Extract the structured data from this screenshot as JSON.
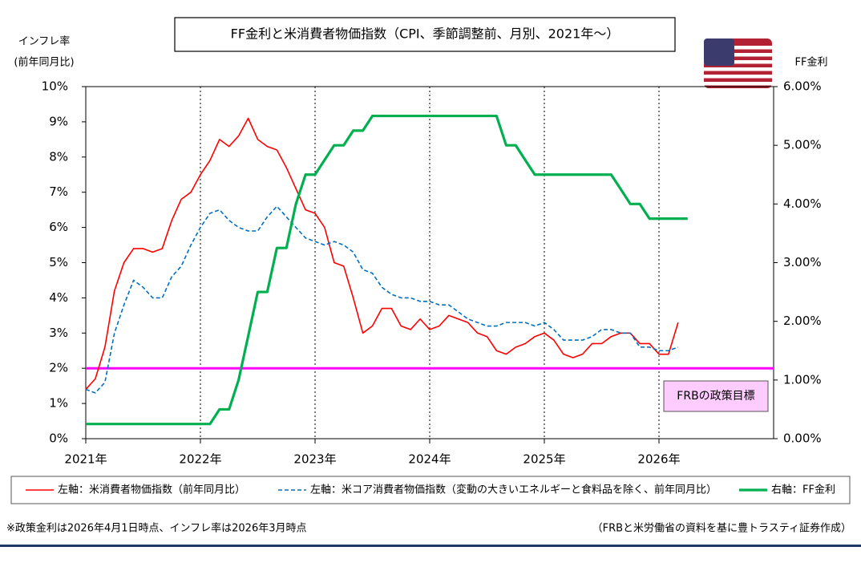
{
  "chart_data": {
    "type": "line",
    "title": "FF金利と米消費者物価指数（CPI、季節調整前、月別、2021年～）",
    "y_label": [
      "インフレ率",
      "(前年同月比)"
    ],
    "y2_label": "FF金利",
    "x": [
      2021,
      2021.083,
      2021.167,
      2021.25,
      2021.333,
      2021.417,
      2021.5,
      2021.583,
      2021.667,
      2021.75,
      2021.833,
      2021.917,
      2022,
      2022.083,
      2022.167,
      2022.25,
      2022.333,
      2022.417,
      2022.5,
      2022.583,
      2022.667,
      2022.75,
      2022.833,
      2022.917,
      2023,
      2023.083,
      2023.167,
      2023.25,
      2023.333,
      2023.417,
      2023.5,
      2023.583,
      2023.667,
      2023.75,
      2023.833,
      2023.917,
      2024,
      2024.083,
      2024.167,
      2024.25,
      2024.333,
      2024.417,
      2024.5,
      2024.583,
      2024.667,
      2024.75,
      2024.833,
      2024.917,
      2025,
      2025.083,
      2025.167,
      2025.25,
      2025.333,
      2025.417,
      2025.5,
      2025.583,
      2025.667,
      2025.75,
      2025.833,
      2025.917,
      2026,
      2026.083,
      2026.167,
      2026.25
    ],
    "xlim": [
      2021,
      2027
    ],
    "xticks": [
      {
        "value": 2021,
        "label": "2021年"
      },
      {
        "value": 2022,
        "label": "2022年"
      },
      {
        "value": 2023,
        "label": "2023年"
      },
      {
        "value": 2024,
        "label": "2024年"
      },
      {
        "value": 2025,
        "label": "2025年"
      },
      {
        "value": 2026,
        "label": "2026年"
      }
    ],
    "ylim": [
      0,
      10
    ],
    "yticks": [
      {
        "value": 0,
        "label": "0%"
      },
      {
        "value": 1,
        "label": "1%"
      },
      {
        "value": 2,
        "label": "2%"
      },
      {
        "value": 3,
        "label": "3%"
      },
      {
        "value": 4,
        "label": "4%"
      },
      {
        "value": 5,
        "label": "5%"
      },
      {
        "value": 6,
        "label": "6%"
      },
      {
        "value": 7,
        "label": "7%"
      },
      {
        "value": 8,
        "label": "8%"
      },
      {
        "value": 9,
        "label": "9%"
      },
      {
        "value": 10,
        "label": "10%"
      }
    ],
    "y2lim": [
      0,
      6
    ],
    "y2ticks": [
      {
        "value": 0,
        "label": "0.00%"
      },
      {
        "value": 1,
        "label": "1.00%"
      },
      {
        "value": 2,
        "label": "2.00%"
      },
      {
        "value": 3,
        "label": "3.00%"
      },
      {
        "value": 4,
        "label": "4.00%"
      },
      {
        "value": 5,
        "label": "5.00%"
      },
      {
        "value": 6,
        "label": "6.00%"
      }
    ],
    "grid": "x",
    "series": [
      {
        "name": "左軸：米消費者物価指数（前年同月比）",
        "color": "#ff0000",
        "style": "solid",
        "values": [
          1.4,
          1.7,
          2.6,
          4.2,
          5.0,
          5.4,
          5.4,
          5.3,
          5.4,
          6.2,
          6.8,
          7.0,
          7.5,
          7.9,
          8.5,
          8.3,
          8.6,
          9.1,
          8.5,
          8.3,
          8.2,
          7.7,
          7.1,
          6.5,
          6.4,
          6.0,
          5.0,
          4.9,
          4.0,
          3.0,
          3.2,
          3.7,
          3.7,
          3.2,
          3.1,
          3.4,
          3.1,
          3.2,
          3.5,
          3.4,
          3.3,
          3.0,
          2.9,
          2.5,
          2.4,
          2.6,
          2.7,
          2.9,
          3.0,
          2.8,
          2.4,
          2.3,
          2.4,
          2.7,
          2.7,
          2.9,
          3.0,
          3.0,
          2.7,
          2.7,
          2.4,
          2.4,
          3.3,
          null
        ]
      },
      {
        "name": "左軸：米コア消費者物価指数（変動の大きいエネルギーと食料品を除く、前年同月比）",
        "color": "#0070c0",
        "style": "dashed",
        "values": [
          1.4,
          1.3,
          1.6,
          3.0,
          3.8,
          4.5,
          4.3,
          4.0,
          4.0,
          4.6,
          4.9,
          5.5,
          6.0,
          6.4,
          6.5,
          6.2,
          6.0,
          5.9,
          5.9,
          6.3,
          6.6,
          6.3,
          6.0,
          5.7,
          5.6,
          5.5,
          5.6,
          5.5,
          5.3,
          4.8,
          4.7,
          4.3,
          4.1,
          4.0,
          4.0,
          3.9,
          3.9,
          3.8,
          3.8,
          3.6,
          3.4,
          3.3,
          3.2,
          3.2,
          3.3,
          3.3,
          3.3,
          3.2,
          3.3,
          3.1,
          2.8,
          2.8,
          2.8,
          2.9,
          3.1,
          3.1,
          3.0,
          3.0,
          2.6,
          2.6,
          2.5,
          2.5,
          2.6,
          null
        ]
      },
      {
        "name": "右軸：FF金利",
        "color": "#00b050",
        "style": "thick",
        "axis": "y2",
        "values": [
          0.25,
          0.25,
          0.25,
          0.25,
          0.25,
          0.25,
          0.25,
          0.25,
          0.25,
          0.25,
          0.25,
          0.25,
          0.25,
          0.25,
          0.5,
          0.5,
          1.0,
          1.75,
          2.5,
          2.5,
          3.25,
          3.25,
          4.0,
          4.5,
          4.5,
          4.75,
          5.0,
          5.0,
          5.25,
          5.25,
          5.5,
          5.5,
          5.5,
          5.5,
          5.5,
          5.5,
          5.5,
          5.5,
          5.5,
          5.5,
          5.5,
          5.5,
          5.5,
          5.5,
          5.0,
          5.0,
          4.75,
          4.5,
          4.5,
          4.5,
          4.5,
          4.5,
          4.5,
          4.5,
          4.5,
          4.5,
          4.25,
          4.0,
          4.0,
          3.75,
          3.75,
          3.75,
          3.75,
          3.75
        ]
      }
    ],
    "target": {
      "value": 2,
      "label": "FRBの政策目標",
      "color": "#ff00ff"
    },
    "footnote": "※政策金利は2026年4月1日時点、インフレ率は2026年3月時点",
    "source": "（FRBと米労働省の資料を基に豊トラスティ証券作成）"
  }
}
